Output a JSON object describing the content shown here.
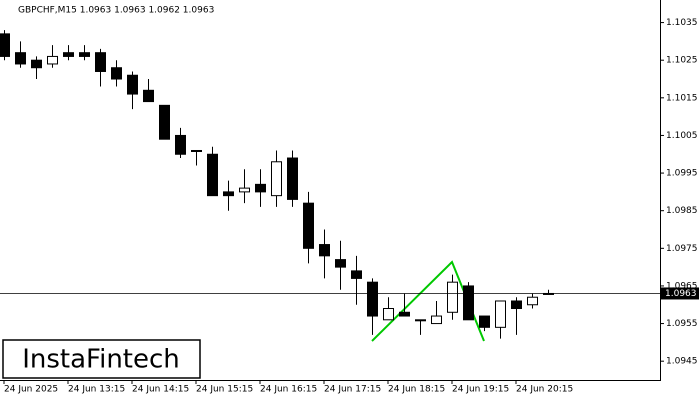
{
  "chart_data": {
    "type": "candlestick",
    "title": "GBPCHF,M15  1.0963 1.0963 1.0962 1.0963",
    "logo": "InstaFintech",
    "categories": [
      "24 Jun 2025",
      null,
      null,
      null,
      "24 Jun 13:15",
      null,
      null,
      null,
      "24 Jun 14:15",
      null,
      null,
      null,
      "24 Jun 15:15",
      null,
      null,
      null,
      "24 Jun 16:15",
      null,
      null,
      null,
      "24 Jun 17:15",
      null,
      null,
      null,
      "24 Jun 18:15",
      null,
      null,
      null,
      "24 Jun 19:15",
      null,
      null,
      null,
      "24 Jun 20:15",
      null,
      null
    ],
    "open": [
      1.1032,
      1.1027,
      1.1025,
      1.1024,
      1.1027,
      1.1027,
      1.1027,
      1.1023,
      1.1021,
      1.1017,
      1.1013,
      1.1005,
      1.1001,
      1.1,
      1.099,
      1.099,
      1.0992,
      1.0989,
      1.0999,
      1.0987,
      1.0976,
      1.0972,
      1.0969,
      1.0966,
      1.0956,
      1.0958,
      1.0956,
      1.0955,
      1.0958,
      1.0965,
      1.0957,
      1.0954,
      1.0961,
      1.096,
      1.0963
    ],
    "high": [
      1.1033,
      1.103,
      1.1026,
      1.1029,
      1.1029,
      1.1029,
      1.1028,
      1.1025,
      1.1022,
      1.102,
      1.1013,
      1.1007,
      1.1001,
      1.1002,
      1.0993,
      1.0996,
      1.0996,
      1.1001,
      1.1001,
      1.099,
      1.098,
      1.0977,
      1.0973,
      1.0967,
      1.0962,
      1.0963,
      1.0956,
      1.0961,
      1.0968,
      1.0966,
      1.0957,
      1.0961,
      1.0962,
      1.0963,
      1.0964
    ],
    "low": [
      1.1025,
      1.1023,
      1.102,
      1.1023,
      1.1025,
      1.1025,
      1.1018,
      1.1018,
      1.1012,
      1.1014,
      1.1004,
      1.0999,
      1.0997,
      1.0989,
      1.0985,
      1.0987,
      1.0986,
      1.0986,
      1.0986,
      1.0971,
      1.0967,
      1.0964,
      1.096,
      1.0952,
      1.0956,
      1.0957,
      1.0952,
      1.0955,
      1.0956,
      1.0956,
      1.0953,
      1.0951,
      1.0952,
      1.0959,
      1.0963
    ],
    "close": [
      1.1026,
      1.1024,
      1.1023,
      1.1026,
      1.1026,
      1.1026,
      1.1022,
      1.102,
      1.1016,
      1.1014,
      1.1004,
      1.1,
      1.1001,
      1.0989,
      1.0989,
      1.0991,
      1.099,
      1.0998,
      1.0988,
      1.0975,
      1.0973,
      1.097,
      1.0967,
      1.0957,
      1.0959,
      1.0957,
      1.0956,
      1.0957,
      1.0966,
      1.0956,
      1.0954,
      1.0961,
      1.0959,
      1.0962,
      1.0963
    ],
    "last_price": 1.0963,
    "up_color": "#ffffff",
    "down_color": "#000000",
    "ylim": [
      1.094,
      1.1041
    ],
    "yticks": [
      1.1035,
      1.1025,
      1.1015,
      1.1005,
      1.0995,
      1.0985,
      1.0975,
      1.0965,
      1.0955,
      1.0945
    ]
  }
}
